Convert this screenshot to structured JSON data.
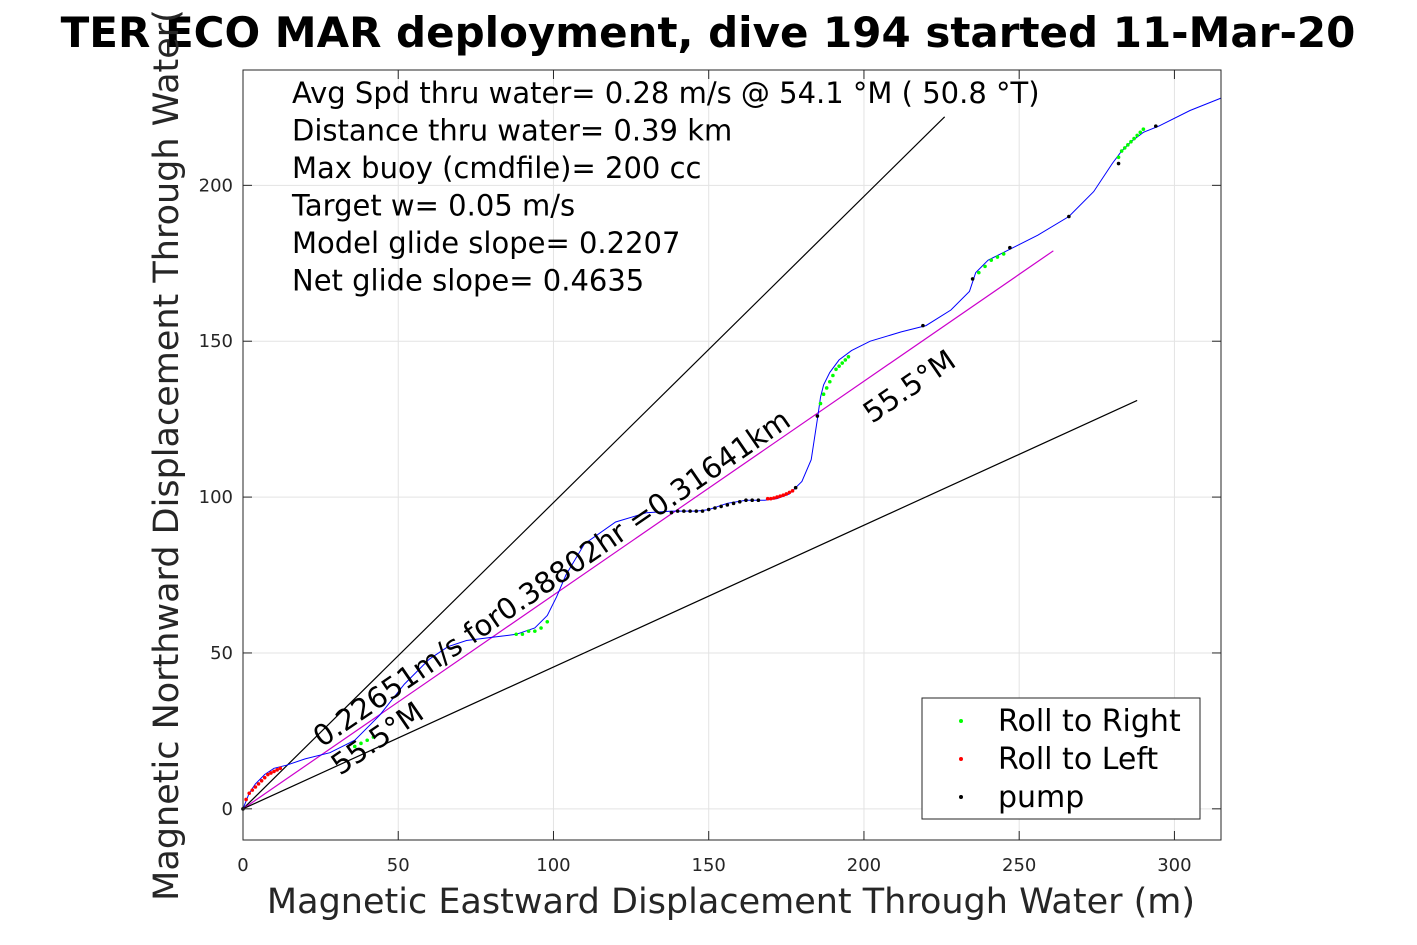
{
  "chart_data": {
    "type": "line",
    "title": "TER ECO MAR deployment, dive 194 started 11-Mar-20",
    "xlabel": "Magnetic Eastward Displacement Through Water (m)",
    "ylabel": "Magnetic Northward Displacement Through Water(",
    "xlim": [
      0,
      315
    ],
    "ylim": [
      -10,
      237
    ],
    "xticks": [
      0,
      50,
      100,
      150,
      200,
      250,
      300
    ],
    "yticks": [
      0,
      50,
      100,
      150,
      200
    ],
    "grid": true,
    "legend_position": "bottom-right",
    "info_lines": [
      "Avg Spd thru water=  0.28 m/s @  54.1 °M ( 50.8 °T)",
      "Distance thru water=  0.39 km",
      "Max buoy (cmdfile)= 200 cc",
      "Target w= 0.05 m/s",
      "Model glide slope= 0.2207",
      "Net glide slope= 0.4635"
    ],
    "annotations": {
      "speed_text": "0.22651m/s for0.38802hr =0.31641km",
      "heading_upper": "55.5°M",
      "heading_lower": "55.5°M"
    },
    "guide_lines": [
      {
        "name": "upper",
        "x": [
          0,
          226
        ],
        "y": [
          0,
          222
        ],
        "color": "#000000"
      },
      {
        "name": "center",
        "x": [
          0,
          261
        ],
        "y": [
          0,
          179
        ],
        "color": "#cc00cc"
      },
      {
        "name": "lower",
        "x": [
          0,
          288
        ],
        "y": [
          0,
          131
        ],
        "color": "#000000"
      }
    ],
    "track": {
      "color": "#0000ff",
      "x": [
        0,
        2,
        4,
        7,
        10,
        14,
        20,
        28,
        36,
        44,
        52,
        60,
        66,
        72,
        80,
        88,
        94,
        98,
        101,
        104,
        110,
        120,
        130,
        138,
        142,
        146,
        150,
        156,
        162,
        168,
        172,
        176,
        178,
        180,
        183,
        185,
        186,
        187,
        189,
        192,
        196,
        202,
        212,
        220,
        228,
        234,
        236,
        240,
        244,
        248,
        256,
        266,
        274,
        280,
        283,
        286,
        290,
        295,
        305,
        315
      ],
      "y": [
        0,
        5,
        8,
        11,
        13,
        14,
        16,
        18,
        22,
        30,
        40,
        48,
        52,
        54,
        55,
        56,
        58,
        62,
        68,
        75,
        85,
        92,
        95,
        95.5,
        95.5,
        95.5,
        96,
        98,
        99,
        99,
        99.5,
        101,
        103,
        105,
        112,
        125,
        132,
        136,
        140,
        144,
        147,
        150,
        153,
        155,
        160,
        166,
        172,
        176,
        178,
        180,
        184,
        190,
        198,
        207,
        211,
        214,
        217,
        219,
        224,
        228
      ]
    },
    "series": [
      {
        "name": "Roll to Right",
        "color": "#00ff00",
        "x": [
          36,
          38,
          40,
          42,
          88,
          90,
          92,
          94,
          96,
          98,
          186,
          187,
          188,
          189,
          190,
          191,
          192,
          193,
          194,
          195,
          237,
          239,
          241,
          243,
          245,
          282,
          283,
          284,
          285,
          286,
          287,
          288,
          289,
          290
        ],
        "y": [
          20,
          21,
          22,
          23,
          56,
          56,
          57,
          57,
          58,
          60,
          130,
          133,
          135,
          137,
          139,
          141,
          142,
          143,
          144,
          145,
          172,
          174,
          176,
          177,
          178,
          209,
          211,
          212,
          213,
          214,
          215,
          216,
          217,
          218
        ]
      },
      {
        "name": "Roll to Left",
        "color": "#ff0000",
        "x": [
          1,
          2,
          3,
          4,
          5,
          6,
          7,
          8,
          9,
          10,
          11,
          12,
          169,
          170,
          171,
          172,
          173,
          174,
          175,
          176,
          177
        ],
        "y": [
          3,
          5,
          6,
          7,
          8,
          9,
          10,
          11,
          11.5,
          12,
          12.5,
          13,
          99.5,
          99.5,
          99.7,
          100,
          100.3,
          100.6,
          101,
          101.5,
          102
        ]
      },
      {
        "name": "pump",
        "color": "#000000",
        "x": [
          0,
          138,
          140,
          142,
          144,
          146,
          148,
          150,
          152,
          154,
          156,
          158,
          160,
          162,
          164,
          166,
          178,
          185,
          219,
          235,
          247,
          266,
          282,
          294
        ],
        "y": [
          0,
          95,
          95.5,
          95.5,
          95.5,
          95.5,
          95.5,
          96,
          96.5,
          97,
          97.5,
          98,
          98.5,
          99,
          99,
          99,
          103,
          126,
          155,
          170,
          180,
          190,
          207,
          219
        ]
      }
    ]
  }
}
